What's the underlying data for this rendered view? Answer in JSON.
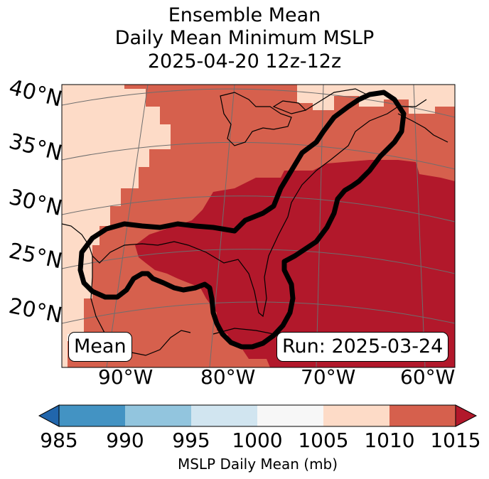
{
  "title": {
    "line1": "Ensemble Mean",
    "line2": "Daily Mean Minimum MSLP",
    "line3": "2025-04-20 12z-12z"
  },
  "map": {
    "lat_labels": [
      "40°N",
      "35°N",
      "30°N",
      "25°N",
      "20°N"
    ],
    "lon_labels": [
      "90°W",
      "80°W",
      "70°W",
      "60°W"
    ],
    "panel_left": "Mean",
    "panel_right": "Run: 2025-03-24",
    "contour_color": "#000000",
    "graticule_color": "#6e6e6e",
    "coastline_color": "#000000"
  },
  "colorbar": {
    "label": "MSLP Daily Mean (mb)",
    "ticks": [
      "985",
      "990",
      "995",
      "1000",
      "1005",
      "1010",
      "1015"
    ],
    "bins": [
      {
        "range": "<985",
        "color": "#2166ac"
      },
      {
        "range": "985-990",
        "color": "#4393c3"
      },
      {
        "range": "990-995",
        "color": "#92c5de"
      },
      {
        "range": "995-1000",
        "color": "#d1e5f0"
      },
      {
        "range": "1000-1005",
        "color": "#f7f7f7"
      },
      {
        "range": "1005-1010",
        "color": "#fddbc7"
      },
      {
        "range": "1010-1015",
        "color": "#d6604d"
      },
      {
        "range": ">1015",
        "color": "#b2182b"
      }
    ],
    "extend": "both"
  }
}
